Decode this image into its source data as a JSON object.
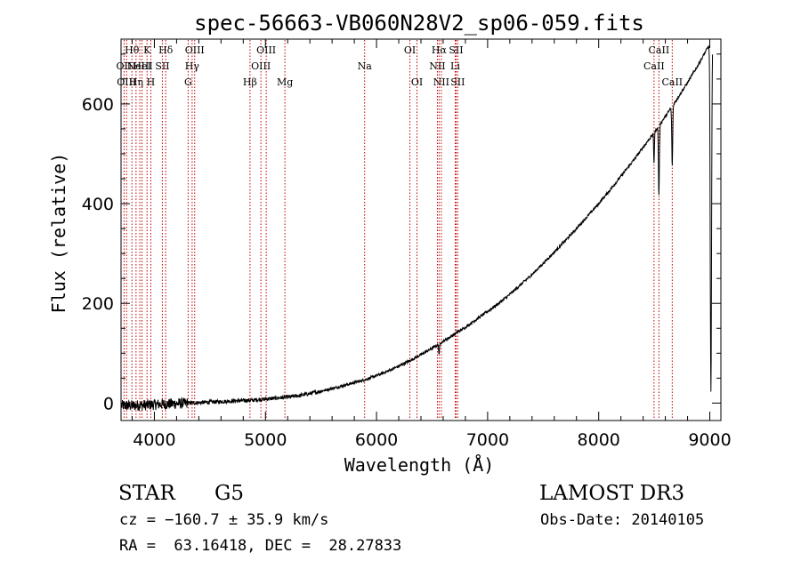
{
  "chart_data": {
    "type": "line",
    "title": "spec-56663-VB060N28V2_sp06-059.fits",
    "xlabel": "Wavelength (Å)",
    "ylabel": "Flux (relative)",
    "xlim": [
      3700,
      9100
    ],
    "ylim": [
      -35,
      730
    ],
    "xticks": [
      4000,
      5000,
      6000,
      7000,
      8000,
      9000
    ],
    "yticks": [
      0,
      200,
      400,
      600
    ],
    "xtick_labels": [
      "4000",
      "5000",
      "6000",
      "7000",
      "8000",
      "9000"
    ],
    "ytick_labels": [
      "0",
      "200",
      "400",
      "600"
    ],
    "line_color": "#000000",
    "marker_color": "#c00000",
    "spectrum": {
      "wavelength": [
        3700,
        3800,
        3900,
        4000,
        4100,
        4200,
        4300,
        4400,
        4500,
        4600,
        4700,
        4800,
        4900,
        5000,
        5100,
        5200,
        5300,
        5400,
        5500,
        5600,
        5700,
        5800,
        5900,
        6000,
        6100,
        6200,
        6300,
        6400,
        6500,
        6600,
        6700,
        6800,
        6900,
        7000,
        7100,
        7200,
        7300,
        7400,
        7500,
        7600,
        7700,
        7800,
        7900,
        8000,
        8100,
        8200,
        8300,
        8400,
        8500,
        8600,
        8700,
        8800,
        8900,
        9000
      ],
      "flux": [
        -5,
        -5,
        -4,
        -3,
        -2,
        -1,
        0,
        1,
        2,
        3,
        4,
        5,
        6,
        8,
        10,
        12,
        15,
        19,
        24,
        29,
        35,
        41,
        47,
        55,
        64,
        74,
        85,
        97,
        110,
        124,
        138,
        152,
        168,
        184,
        200,
        218,
        238,
        258,
        280,
        303,
        326,
        350,
        375,
        400,
        427,
        455,
        483,
        513,
        543,
        575,
        608,
        643,
        680,
        720
      ],
      "absorption": [
        {
          "center": 8498,
          "depth": 60,
          "width": 5
        },
        {
          "center": 8542,
          "depth": 140,
          "width": 6
        },
        {
          "center": 8662,
          "depth": 120,
          "width": 6
        },
        {
          "center": 6563,
          "depth": 20,
          "width": 6
        },
        {
          "center": 9010,
          "depth": 700,
          "width": 8
        }
      ]
    },
    "line_markers": [
      {
        "wavelength": 3727,
        "label": "OII",
        "row": 1
      },
      {
        "wavelength": 3750,
        "label": "OIII",
        "row": 2
      },
      {
        "wavelength": 3798,
        "label": "Hθ",
        "row": 0
      },
      {
        "wavelength": 3835,
        "label": "Hη",
        "row": 2
      },
      {
        "wavelength": 3869,
        "label": "NeIII",
        "row": 1
      },
      {
        "wavelength": 3889,
        "label": "HeI",
        "row": 1
      },
      {
        "wavelength": 3934,
        "label": "K",
        "row": 0
      },
      {
        "wavelength": 3968,
        "label": "H",
        "row": 2
      },
      {
        "wavelength": 4072,
        "label": "SII",
        "row": 1
      },
      {
        "wavelength": 4102,
        "label": "Hδ",
        "row": 0
      },
      {
        "wavelength": 4304,
        "label": "G",
        "row": 2
      },
      {
        "wavelength": 4340,
        "label": "Hγ",
        "row": 1
      },
      {
        "wavelength": 4363,
        "label": "OIII",
        "row": 0
      },
      {
        "wavelength": 4861,
        "label": "Hβ",
        "row": 2
      },
      {
        "wavelength": 4959,
        "label": "OIII",
        "row": 1
      },
      {
        "wavelength": 5007,
        "label": "OIII",
        "row": 0
      },
      {
        "wavelength": 5175,
        "label": "Mg",
        "row": 2
      },
      {
        "wavelength": 5893,
        "label": "Na",
        "row": 1
      },
      {
        "wavelength": 6300,
        "label": "OI",
        "row": 0
      },
      {
        "wavelength": 6364,
        "label": "OI",
        "row": 2
      },
      {
        "wavelength": 6548,
        "label": "NII",
        "row": 1
      },
      {
        "wavelength": 6563,
        "label": "Hα",
        "row": 0
      },
      {
        "wavelength": 6583,
        "label": "NII",
        "row": 2
      },
      {
        "wavelength": 6708,
        "label": "Li",
        "row": 1
      },
      {
        "wavelength": 6716,
        "label": "SII",
        "row": 0
      },
      {
        "wavelength": 6731,
        "label": "SII",
        "row": 2
      },
      {
        "wavelength": 8498,
        "label": "CaII",
        "row": 1
      },
      {
        "wavelength": 8542,
        "label": "CaII",
        "row": 0
      },
      {
        "wavelength": 8662,
        "label": "CaII",
        "row": 2
      }
    ]
  },
  "info": {
    "class": "STAR",
    "subclass": "G5",
    "survey": "LAMOST DR3",
    "cz": "cz = −160.7 ± 35.9 km/s",
    "obs_date": "Obs-Date: 20140105",
    "coords": "RA =  63.16418, DEC =  28.27833"
  }
}
